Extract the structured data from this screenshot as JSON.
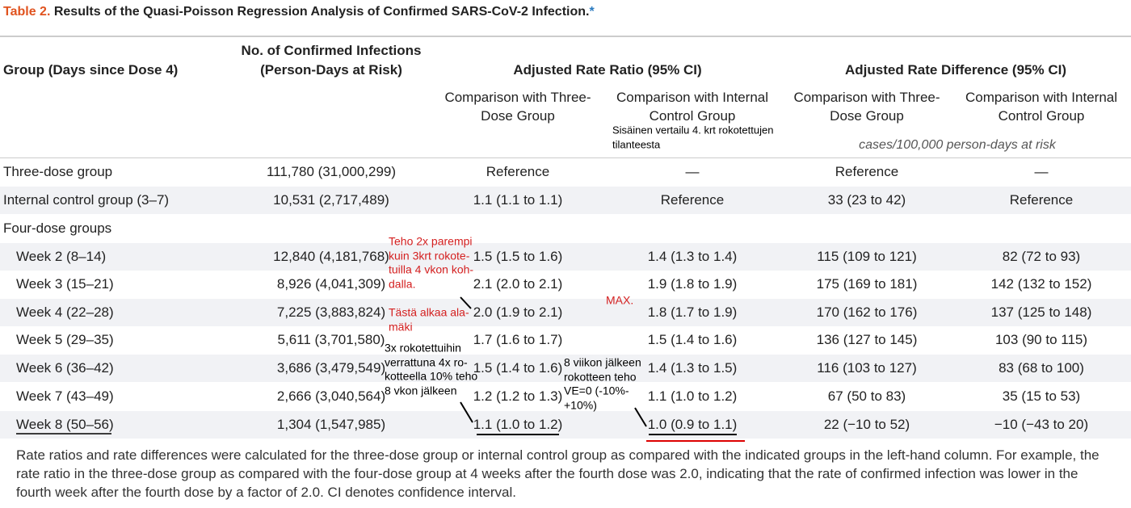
{
  "table_label": "Table 2.",
  "title": "Results of the Quasi-Poisson Regression Analysis of Confirmed SARS-CoV-2 Infection.",
  "title_marker": "*",
  "headers": [
    "Group (Days since Dose 4)",
    [
      "No. of Confirmed Infections",
      "(Person-Days at Risk)"
    ],
    "Adjusted Rate Ratio (95% CI)",
    "Adjusted Rate Difference (95% CI)"
  ],
  "subheaders": [
    [
      "Comparison with Three-",
      "Dose Group"
    ],
    [
      "Comparison with Internal",
      "Control Group"
    ],
    [
      "Comparison with Three-",
      "Dose Group"
    ],
    [
      "Comparison with Internal",
      "Control Group"
    ]
  ],
  "units": "cases/100,000 person-days at risk",
  "rows": [
    [
      "Three-dose group",
      "111,780 (31,000,299)",
      "Reference",
      "—",
      "Reference",
      "—"
    ],
    [
      "Internal control group (3–7)",
      "10,531 (2,717,489)",
      "1.1 (1.1 to 1.1)",
      "Reference",
      "33 (23 to 42)",
      "Reference"
    ],
    [
      "Four-dose groups"
    ],
    [
      "Week 2 (8–14)",
      "12,840 (4,181,768)",
      "1.5 (1.5 to 1.6)",
      "1.4 (1.3 to 1.4)",
      "115 (109 to 121)",
      "82 (72 to 93)"
    ],
    [
      "Week 3 (15–21)",
      "8,926 (4,041,309)",
      "2.1 (2.0 to 2.1)",
      "1.9 (1.8 to 1.9)",
      "175 (169 to 181)",
      "142 (132 to 152)"
    ],
    [
      "Week 4 (22–28)",
      "7,225 (3,883,824)",
      "2.0 (1.9 to 2.1)",
      "1.8 (1.7 to 1.9)",
      "170 (162 to 176)",
      "137 (125 to 148)"
    ],
    [
      "Week 5 (29–35)",
      "5,611 (3,701,580)",
      "1.7 (1.6 to 1.7)",
      "1.5 (1.4 to 1.6)",
      "136 (127 to 145)",
      "103 (90 to 115)"
    ],
    [
      "Week 6 (36–42)",
      "3,686 (3,479,549)",
      "1.5 (1.4 to 1.6)",
      "1.4 (1.3 to 1.5)",
      "116 (103 to 127)",
      "83 (68 to 100)"
    ],
    [
      "Week 7 (43–49)",
      "2,666 (3,040,564)",
      "1.2 (1.2 to 1.3)",
      "1.1 (1.0 to 1.2)",
      "67 (50 to 83)",
      "35 (15 to 53)"
    ],
    [
      "Week 8 (50–56)",
      "1,304 (1,547,985)",
      "1.1 (1.0 to 1.2)",
      "1.0 (0.9 to 1.1)",
      "22 (−10 to 52)",
      "−10 (−43 to 20)"
    ]
  ],
  "annotations": [
    {
      "lines": [
        "Sisäinen vertailu 4. krt rokotettujen",
        "tilanteesta"
      ],
      "color": "black"
    },
    {
      "lines": [
        "Teho 2x parempi",
        "kuin 3krt rokote-",
        "tuilla 4 vkon koh-",
        "dalla."
      ],
      "color": "red"
    },
    {
      "lines": [
        "Tästä alkaa ala-",
        "mäki"
      ],
      "color": "red"
    },
    {
      "lines": [
        "MAX."
      ],
      "color": "red"
    },
    {
      "lines": [
        "3x rokotettuihin",
        "verrattuna 4x ro-",
        "kotteella 10% teho",
        "8 vkon jälkeen"
      ],
      "color": "black"
    },
    {
      "lines": [
        "8 viikon jälkeen",
        "rokotteen teho",
        "VE=0 (-10%-",
        "+10%)"
      ],
      "color": "black"
    }
  ],
  "footnote": [
    "Rate ratios and rate differences were calculated for the three-dose group or internal control group as compared with the indicated groups in the left-hand column. For example, the",
    "rate ratio in the three-dose group as compared with the four-dose group at 4 weeks after the fourth dose was 2.0, indicating that the rate of confirmed infection was lower in the",
    "fourth week after the fourth dose by a factor of 2.0. CI denotes confidence interval."
  ]
}
